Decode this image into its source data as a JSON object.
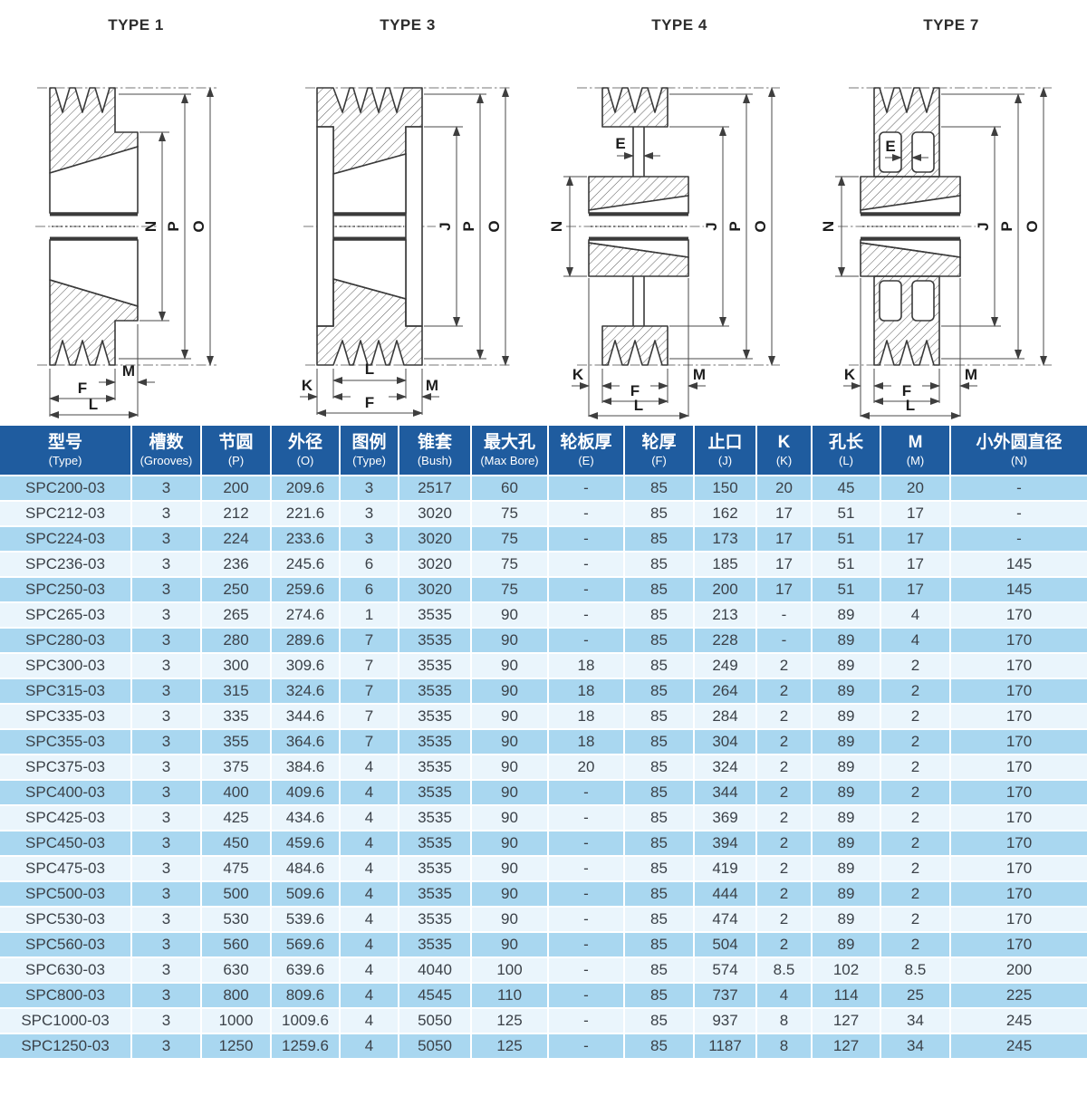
{
  "diagrams": {
    "titles": [
      "TYPE 1",
      "TYPE 3",
      "TYPE 4",
      "TYPE 7"
    ]
  },
  "dim_labels": {
    "E": "E",
    "F": "F",
    "J": "J",
    "K": "K",
    "L": "L",
    "M": "M",
    "N": "N",
    "O": "O",
    "P": "P"
  },
  "table": {
    "colors": {
      "header_bg": "#1f5c9f",
      "row_dark": "#a9d7f0",
      "row_light": "#eaf5fc",
      "cell_text": "#3b4148",
      "header_text": "#ffffff"
    },
    "columns": [
      {
        "zh": "型号",
        "en": "(Type)"
      },
      {
        "zh": "槽数",
        "en": "(Grooves)"
      },
      {
        "zh": "节圆",
        "en": "(P)"
      },
      {
        "zh": "外径",
        "en": "(O)"
      },
      {
        "zh": "图例",
        "en": "(Type)"
      },
      {
        "zh": "锥套",
        "en": "(Bush)"
      },
      {
        "zh": "最大孔",
        "en": "(Max Bore)"
      },
      {
        "zh": "轮板厚",
        "en": "(E)"
      },
      {
        "zh": "轮厚",
        "en": "(F)"
      },
      {
        "zh": "止口",
        "en": "(J)"
      },
      {
        "zh": "K",
        "en": "(K)"
      },
      {
        "zh": "孔长",
        "en": "(L)"
      },
      {
        "zh": "M",
        "en": "(M)"
      },
      {
        "zh": "小外圆直径",
        "en": "(N)"
      }
    ],
    "rows": [
      [
        "SPC200-03",
        "3",
        "200",
        "209.6",
        "3",
        "2517",
        "60",
        "-",
        "85",
        "150",
        "20",
        "45",
        "20",
        "-"
      ],
      [
        "SPC212-03",
        "3",
        "212",
        "221.6",
        "3",
        "3020",
        "75",
        "-",
        "85",
        "162",
        "17",
        "51",
        "17",
        "-"
      ],
      [
        "SPC224-03",
        "3",
        "224",
        "233.6",
        "3",
        "3020",
        "75",
        "-",
        "85",
        "173",
        "17",
        "51",
        "17",
        "-"
      ],
      [
        "SPC236-03",
        "3",
        "236",
        "245.6",
        "6",
        "3020",
        "75",
        "-",
        "85",
        "185",
        "17",
        "51",
        "17",
        "145"
      ],
      [
        "SPC250-03",
        "3",
        "250",
        "259.6",
        "6",
        "3020",
        "75",
        "-",
        "85",
        "200",
        "17",
        "51",
        "17",
        "145"
      ],
      [
        "SPC265-03",
        "3",
        "265",
        "274.6",
        "1",
        "3535",
        "90",
        "-",
        "85",
        "213",
        "-",
        "89",
        "4",
        "170"
      ],
      [
        "SPC280-03",
        "3",
        "280",
        "289.6",
        "7",
        "3535",
        "90",
        "-",
        "85",
        "228",
        "-",
        "89",
        "4",
        "170"
      ],
      [
        "SPC300-03",
        "3",
        "300",
        "309.6",
        "7",
        "3535",
        "90",
        "18",
        "85",
        "249",
        "2",
        "89",
        "2",
        "170"
      ],
      [
        "SPC315-03",
        "3",
        "315",
        "324.6",
        "7",
        "3535",
        "90",
        "18",
        "85",
        "264",
        "2",
        "89",
        "2",
        "170"
      ],
      [
        "SPC335-03",
        "3",
        "335",
        "344.6",
        "7",
        "3535",
        "90",
        "18",
        "85",
        "284",
        "2",
        "89",
        "2",
        "170"
      ],
      [
        "SPC355-03",
        "3",
        "355",
        "364.6",
        "7",
        "3535",
        "90",
        "18",
        "85",
        "304",
        "2",
        "89",
        "2",
        "170"
      ],
      [
        "SPC375-03",
        "3",
        "375",
        "384.6",
        "4",
        "3535",
        "90",
        "20",
        "85",
        "324",
        "2",
        "89",
        "2",
        "170"
      ],
      [
        "SPC400-03",
        "3",
        "400",
        "409.6",
        "4",
        "3535",
        "90",
        "-",
        "85",
        "344",
        "2",
        "89",
        "2",
        "170"
      ],
      [
        "SPC425-03",
        "3",
        "425",
        "434.6",
        "4",
        "3535",
        "90",
        "-",
        "85",
        "369",
        "2",
        "89",
        "2",
        "170"
      ],
      [
        "SPC450-03",
        "3",
        "450",
        "459.6",
        "4",
        "3535",
        "90",
        "-",
        "85",
        "394",
        "2",
        "89",
        "2",
        "170"
      ],
      [
        "SPC475-03",
        "3",
        "475",
        "484.6",
        "4",
        "3535",
        "90",
        "-",
        "85",
        "419",
        "2",
        "89",
        "2",
        "170"
      ],
      [
        "SPC500-03",
        "3",
        "500",
        "509.6",
        "4",
        "3535",
        "90",
        "-",
        "85",
        "444",
        "2",
        "89",
        "2",
        "170"
      ],
      [
        "SPC530-03",
        "3",
        "530",
        "539.6",
        "4",
        "3535",
        "90",
        "-",
        "85",
        "474",
        "2",
        "89",
        "2",
        "170"
      ],
      [
        "SPC560-03",
        "3",
        "560",
        "569.6",
        "4",
        "3535",
        "90",
        "-",
        "85",
        "504",
        "2",
        "89",
        "2",
        "170"
      ],
      [
        "SPC630-03",
        "3",
        "630",
        "639.6",
        "4",
        "4040",
        "100",
        "-",
        "85",
        "574",
        "8.5",
        "102",
        "8.5",
        "200"
      ],
      [
        "SPC800-03",
        "3",
        "800",
        "809.6",
        "4",
        "4545",
        "110",
        "-",
        "85",
        "737",
        "4",
        "114",
        "25",
        "225"
      ],
      [
        "SPC1000-03",
        "3",
        "1000",
        "1009.6",
        "4",
        "5050",
        "125",
        "-",
        "85",
        "937",
        "8",
        "127",
        "34",
        "245"
      ],
      [
        "SPC1250-03",
        "3",
        "1250",
        "1259.6",
        "4",
        "5050",
        "125",
        "-",
        "85",
        "1187",
        "8",
        "127",
        "34",
        "245"
      ]
    ]
  }
}
